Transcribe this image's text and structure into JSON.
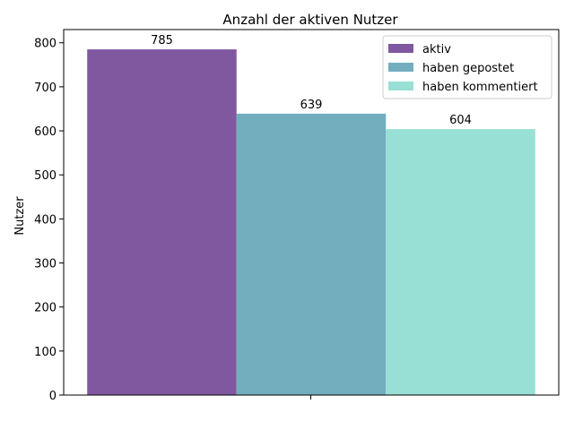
{
  "chart_data": {
    "type": "bar",
    "title": "Anzahl der aktiven Nutzer",
    "xlabel": "",
    "ylabel": "Nutzer",
    "ylim": [
      0,
      830
    ],
    "yticks": [
      0,
      100,
      200,
      300,
      400,
      500,
      600,
      700,
      800
    ],
    "categories": [
      ""
    ],
    "series": [
      {
        "name": "aktiv",
        "values": [
          785
        ],
        "color": "#7f58a0"
      },
      {
        "name": "haben gepostet",
        "values": [
          639
        ],
        "color": "#73aebf"
      },
      {
        "name": "haben kommentiert",
        "values": [
          604
        ],
        "color": "#98dfd5"
      }
    ],
    "data_labels": [
      "785",
      "639",
      "604"
    ],
    "legend": "top-right",
    "grid": false
  }
}
